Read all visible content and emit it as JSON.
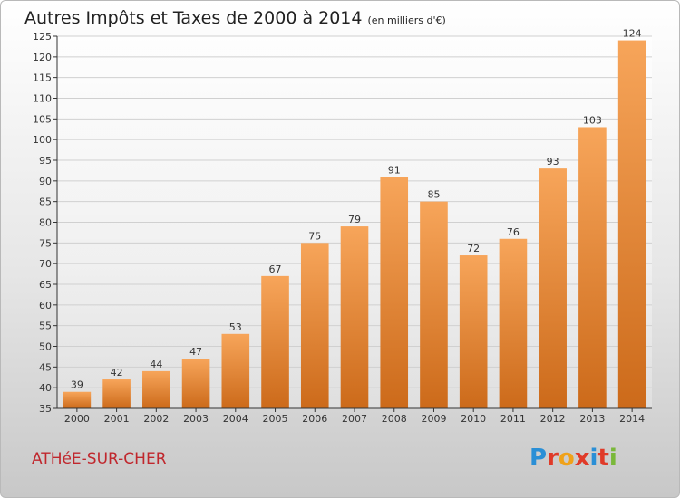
{
  "title": "Autres Impôts et Taxes de 2000 à 2014",
  "unit": "(en milliers d'€)",
  "commune": "ATHéE-SUR-CHER",
  "logo": {
    "text": "Proxiti",
    "colors": [
      "#2a8fd6",
      "#e03a28",
      "#f0a21a",
      "#e03a28",
      "#2a8fd6",
      "#e03a28",
      "#7ab83a"
    ]
  },
  "colors": {
    "bar_top": "#f7a55a",
    "bar_bottom": "#cc6a1a",
    "grid": "#d0d0d0",
    "axis": "#333333"
  },
  "chart_data": {
    "type": "bar",
    "categories": [
      "2000",
      "2001",
      "2002",
      "2003",
      "2004",
      "2005",
      "2006",
      "2007",
      "2008",
      "2009",
      "2010",
      "2011",
      "2012",
      "2013",
      "2014"
    ],
    "values": [
      39,
      42,
      44,
      47,
      53,
      67,
      75,
      79,
      91,
      85,
      72,
      76,
      93,
      103,
      124
    ],
    "ylim": [
      35,
      125
    ],
    "yticks": [
      35,
      40,
      45,
      50,
      55,
      60,
      65,
      70,
      75,
      80,
      85,
      90,
      95,
      100,
      105,
      110,
      115,
      120,
      125
    ],
    "grid": true
  }
}
